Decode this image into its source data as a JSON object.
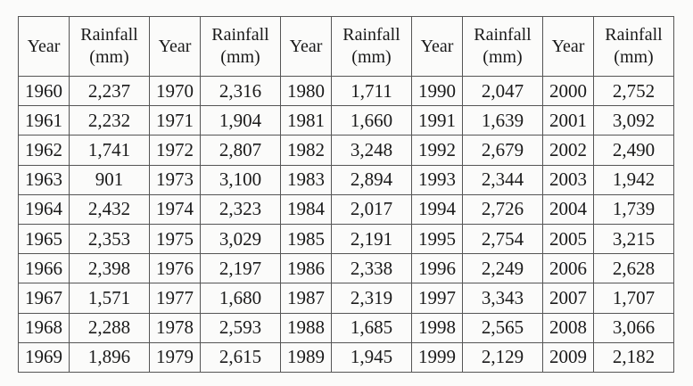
{
  "table": {
    "headers": [
      {
        "lines": [
          "Year"
        ]
      },
      {
        "lines": [
          "Rainfall",
          "(mm)"
        ]
      },
      {
        "lines": [
          "Year"
        ]
      },
      {
        "lines": [
          "Rainfall",
          "(mm)"
        ]
      },
      {
        "lines": [
          "Year"
        ]
      },
      {
        "lines": [
          "Rainfall",
          "(mm)"
        ]
      },
      {
        "lines": [
          "Year"
        ]
      },
      {
        "lines": [
          "Rainfall",
          "(mm)"
        ]
      },
      {
        "lines": [
          "Year"
        ]
      },
      {
        "lines": [
          "Rainfall",
          "(mm)"
        ]
      }
    ],
    "rows": [
      [
        "1960",
        "2,237",
        "1970",
        "2,316",
        "1980",
        "1,711",
        "1990",
        "2,047",
        "2000",
        "2,752"
      ],
      [
        "1961",
        "2,232",
        "1971",
        "1,904",
        "1981",
        "1,660",
        "1991",
        "1,639",
        "2001",
        "3,092"
      ],
      [
        "1962",
        "1,741",
        "1972",
        "2,807",
        "1982",
        "3,248",
        "1992",
        "2,679",
        "2002",
        "2,490"
      ],
      [
        "1963",
        "901",
        "1973",
        "3,100",
        "1983",
        "2,894",
        "1993",
        "2,344",
        "2003",
        "1,942"
      ],
      [
        "1964",
        "2,432",
        "1974",
        "2,323",
        "1984",
        "2,017",
        "1994",
        "2,726",
        "2004",
        "1,739"
      ],
      [
        "1965",
        "2,353",
        "1975",
        "3,029",
        "1985",
        "2,191",
        "1995",
        "2,754",
        "2005",
        "3,215"
      ],
      [
        "1966",
        "2,398",
        "1976",
        "2,197",
        "1986",
        "2,338",
        "1996",
        "2,249",
        "2006",
        "2,628"
      ],
      [
        "1967",
        "1,571",
        "1977",
        "1,680",
        "1987",
        "2,319",
        "1997",
        "3,343",
        "2007",
        "1,707"
      ],
      [
        "1968",
        "2,288",
        "1978",
        "2,593",
        "1988",
        "1,685",
        "1998",
        "2,565",
        "2008",
        "3,066"
      ],
      [
        "1969",
        "1,896",
        "1979",
        "2,615",
        "1989",
        "1,945",
        "1999",
        "2,129",
        "2009",
        "2,182"
      ]
    ]
  }
}
